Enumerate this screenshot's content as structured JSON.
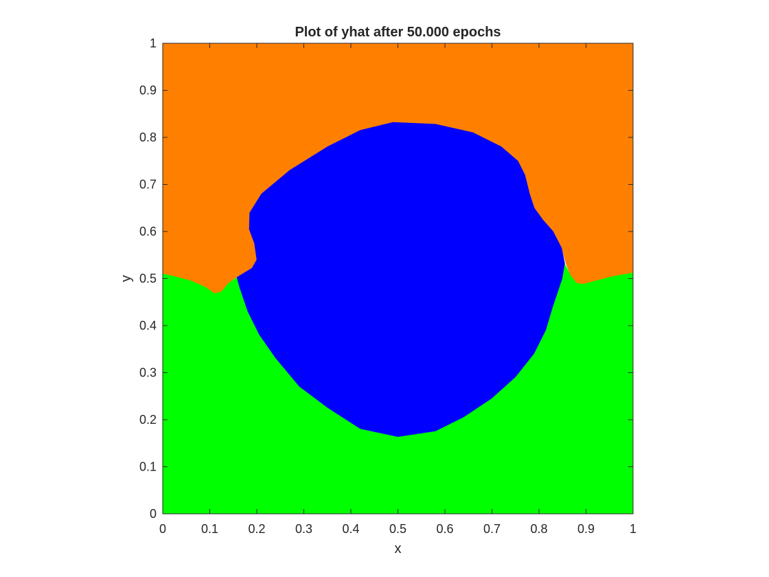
{
  "chart_data": {
    "type": "heatmap",
    "title": "Plot of yhat after 50.000 epochs",
    "xlabel": "x",
    "ylabel": "y",
    "xlim": [
      0,
      1
    ],
    "ylim": [
      0,
      1
    ],
    "xticks": [
      "0",
      "0.1",
      "0.2",
      "0.3",
      "0.4",
      "0.5",
      "0.6",
      "0.7",
      "0.8",
      "0.9",
      "1"
    ],
    "yticks": [
      "0",
      "0.1",
      "0.2",
      "0.3",
      "0.4",
      "0.5",
      "0.6",
      "0.7",
      "0.8",
      "0.9",
      "1"
    ],
    "grid": false,
    "regions": [
      {
        "class": "top",
        "color": "#ff8000",
        "boundary": [
          [
            0,
            1
          ],
          [
            1,
            1
          ],
          [
            1,
            0.512
          ],
          [
            0.96,
            0.505
          ],
          [
            0.92,
            0.495
          ],
          [
            0.895,
            0.488
          ],
          [
            0.88,
            0.49
          ],
          [
            0.868,
            0.505
          ],
          [
            0.858,
            0.53
          ],
          [
            0.848,
            0.565
          ],
          [
            0.83,
            0.6
          ],
          [
            0.808,
            0.625
          ],
          [
            0.79,
            0.65
          ],
          [
            0.78,
            0.68
          ],
          [
            0.77,
            0.72
          ],
          [
            0.755,
            0.75
          ],
          [
            0.72,
            0.78
          ],
          [
            0.66,
            0.81
          ],
          [
            0.58,
            0.828
          ],
          [
            0.49,
            0.832
          ],
          [
            0.42,
            0.815
          ],
          [
            0.35,
            0.78
          ],
          [
            0.27,
            0.73
          ],
          [
            0.21,
            0.68
          ],
          [
            0.185,
            0.64
          ],
          [
            0.184,
            0.605
          ],
          [
            0.195,
            0.575
          ],
          [
            0.2,
            0.54
          ],
          [
            0.19,
            0.522
          ],
          [
            0.17,
            0.51
          ],
          [
            0.155,
            0.502
          ],
          [
            0.14,
            0.49
          ],
          [
            0.125,
            0.472
          ],
          [
            0.11,
            0.468
          ],
          [
            0.09,
            0.482
          ],
          [
            0.06,
            0.495
          ],
          [
            0.03,
            0.503
          ],
          [
            0,
            0.51
          ]
        ]
      },
      {
        "class": "middle",
        "color": "#0000ff",
        "boundary": [
          [
            0.49,
            0.832
          ],
          [
            0.58,
            0.828
          ],
          [
            0.66,
            0.81
          ],
          [
            0.72,
            0.78
          ],
          [
            0.755,
            0.75
          ],
          [
            0.77,
            0.72
          ],
          [
            0.78,
            0.68
          ],
          [
            0.79,
            0.65
          ],
          [
            0.808,
            0.625
          ],
          [
            0.83,
            0.6
          ],
          [
            0.848,
            0.565
          ],
          [
            0.855,
            0.53
          ],
          [
            0.85,
            0.5
          ],
          [
            0.84,
            0.47
          ],
          [
            0.83,
            0.44
          ],
          [
            0.815,
            0.39
          ],
          [
            0.79,
            0.34
          ],
          [
            0.75,
            0.29
          ],
          [
            0.7,
            0.245
          ],
          [
            0.64,
            0.205
          ],
          [
            0.58,
            0.175
          ],
          [
            0.5,
            0.163
          ],
          [
            0.42,
            0.18
          ],
          [
            0.35,
            0.225
          ],
          [
            0.29,
            0.27
          ],
          [
            0.24,
            0.33
          ],
          [
            0.205,
            0.38
          ],
          [
            0.18,
            0.43
          ],
          [
            0.163,
            0.48
          ],
          [
            0.157,
            0.502
          ],
          [
            0.17,
            0.51
          ],
          [
            0.19,
            0.522
          ],
          [
            0.2,
            0.54
          ],
          [
            0.195,
            0.575
          ],
          [
            0.184,
            0.605
          ],
          [
            0.185,
            0.64
          ],
          [
            0.21,
            0.68
          ],
          [
            0.27,
            0.73
          ],
          [
            0.35,
            0.78
          ],
          [
            0.42,
            0.815
          ]
        ]
      },
      {
        "class": "bottom",
        "color": "#00ff00",
        "boundary": [
          [
            0,
            0
          ],
          [
            1,
            0
          ],
          [
            1,
            0.512
          ],
          [
            0.96,
            0.505
          ],
          [
            0.92,
            0.495
          ],
          [
            0.895,
            0.488
          ],
          [
            0.88,
            0.49
          ],
          [
            0.868,
            0.505
          ],
          [
            0.855,
            0.53
          ],
          [
            0.85,
            0.5
          ],
          [
            0.84,
            0.47
          ],
          [
            0.83,
            0.44
          ],
          [
            0.815,
            0.39
          ],
          [
            0.79,
            0.34
          ],
          [
            0.75,
            0.29
          ],
          [
            0.7,
            0.245
          ],
          [
            0.64,
            0.205
          ],
          [
            0.58,
            0.175
          ],
          [
            0.5,
            0.163
          ],
          [
            0.42,
            0.18
          ],
          [
            0.35,
            0.225
          ],
          [
            0.29,
            0.27
          ],
          [
            0.24,
            0.33
          ],
          [
            0.205,
            0.38
          ],
          [
            0.18,
            0.43
          ],
          [
            0.163,
            0.48
          ],
          [
            0.157,
            0.502
          ],
          [
            0.14,
            0.49
          ],
          [
            0.125,
            0.472
          ],
          [
            0.11,
            0.468
          ],
          [
            0.09,
            0.482
          ],
          [
            0.06,
            0.495
          ],
          [
            0.03,
            0.503
          ],
          [
            0,
            0.51
          ]
        ]
      }
    ]
  }
}
